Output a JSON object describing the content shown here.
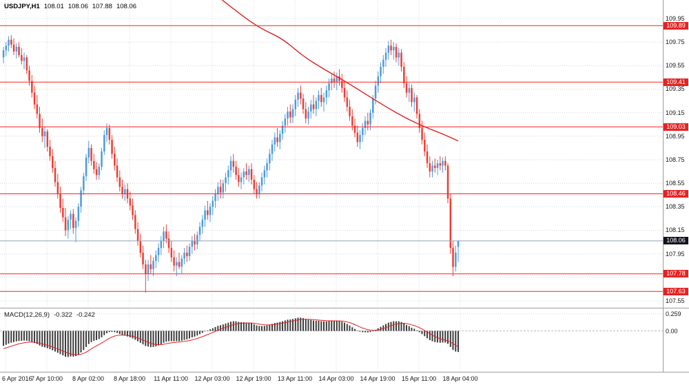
{
  "header": {
    "symbol": "USDJPY,H1",
    "open": "108.01",
    "high": "108.06",
    "low": "107.88",
    "close": "108.06"
  },
  "indicator_label": {
    "name": "MACD(12,26,9)",
    "macd_value": "-0.322",
    "signal_value": "-0.242"
  },
  "colors": {
    "bull": "#4a9bdf",
    "bear": "#ef3b33",
    "level_line": "#ff1f1f",
    "badge_bg": "#e32424",
    "ma_line": "#e01f1f",
    "signal_line": "#e01f1f",
    "histogram": "#3c3c3c",
    "current_line": "#8fa0b3",
    "current_badge_bg": "#10131d",
    "grid": "#d4d4d4",
    "separator": "#9b9b9b",
    "axis_text": "#141414",
    "badge_text": "#ffffff"
  },
  "chart_data": {
    "type": "candlestick",
    "title": "USDJPY H1 candlestick chart with MACD(12,26,9)",
    "symbol": "USDJPY",
    "timeframe": "H1",
    "grid": "dotted",
    "price_ticks": [
      "109.95",
      "109.75",
      "109.55",
      "109.35",
      "109.15",
      "108.95",
      "108.75",
      "108.55",
      "108.35",
      "108.15",
      "107.95",
      "107.75",
      "107.55"
    ],
    "price_range_shown": [
      107.49,
      110.11
    ],
    "time_labels": [
      "6 Apr 2016",
      "7 Apr 10:00",
      "8 Apr 02:00",
      "8 Apr 18:00",
      "11 Apr 11:00",
      "12 Apr 03:00",
      "12 Apr 19:00",
      "13 Apr 11:00",
      "14 Apr 03:00",
      "14 Apr 19:00",
      "15 Apr 11:00",
      "18 Apr 04:00"
    ],
    "horizontal_levels": [
      {
        "price": 109.89,
        "label": "109.89"
      },
      {
        "price": 109.41,
        "label": "109.41"
      },
      {
        "price": 109.03,
        "label": "109.03"
      },
      {
        "price": 108.46,
        "label": "108.46"
      },
      {
        "price": 107.78,
        "label": "107.78"
      },
      {
        "price": 107.63,
        "label": "107.63"
      }
    ],
    "current_price": {
      "price": 108.06,
      "label": "108.06"
    },
    "ma_trend_points": [
      [
        84,
        110.12
      ],
      [
        92,
        109.98
      ],
      [
        100,
        109.86
      ],
      [
        108,
        109.78
      ],
      [
        116,
        109.63
      ],
      [
        124,
        109.52
      ],
      [
        132,
        109.42
      ],
      [
        140,
        109.31
      ],
      [
        148,
        109.2
      ],
      [
        156,
        109.1
      ],
      [
        164,
        109.02
      ],
      [
        170,
        108.97
      ],
      [
        176,
        108.91
      ]
    ],
    "ohlc": [
      [
        109.62,
        109.71,
        109.57,
        109.68
      ],
      [
        109.68,
        109.75,
        109.63,
        109.72
      ],
      [
        109.72,
        109.8,
        109.67,
        109.77
      ],
      [
        109.77,
        109.81,
        109.7,
        109.73
      ],
      [
        109.73,
        109.78,
        109.64,
        109.67
      ],
      [
        109.67,
        109.74,
        109.61,
        109.71
      ],
      [
        109.71,
        109.75,
        109.62,
        109.64
      ],
      [
        109.64,
        109.7,
        109.56,
        109.59
      ],
      [
        109.59,
        109.66,
        109.52,
        109.62
      ],
      [
        109.62,
        109.64,
        109.48,
        109.51
      ],
      [
        109.51,
        109.55,
        109.38,
        109.42
      ],
      [
        109.42,
        109.47,
        109.28,
        109.32
      ],
      [
        109.32,
        109.38,
        109.18,
        109.22
      ],
      [
        109.22,
        109.3,
        109.1,
        109.14
      ],
      [
        109.14,
        109.2,
        108.98,
        109.02
      ],
      [
        109.02,
        109.1,
        108.9,
        108.95
      ],
      [
        108.95,
        109.03,
        108.85,
        108.99
      ],
      [
        108.99,
        109.01,
        108.82,
        108.86
      ],
      [
        108.86,
        108.92,
        108.74,
        108.78
      ],
      [
        108.78,
        108.84,
        108.64,
        108.68
      ],
      [
        108.68,
        108.74,
        108.52,
        108.56
      ],
      [
        108.56,
        108.63,
        108.42,
        108.46
      ],
      [
        108.46,
        108.52,
        108.3,
        108.34
      ],
      [
        108.34,
        108.42,
        108.22,
        108.26
      ],
      [
        108.26,
        108.34,
        108.1,
        108.15
      ],
      [
        108.15,
        108.27,
        108.08,
        108.24
      ],
      [
        108.24,
        108.32,
        108.16,
        108.29
      ],
      [
        108.29,
        108.33,
        108.12,
        108.17
      ],
      [
        108.17,
        108.26,
        108.05,
        108.23
      ],
      [
        108.23,
        108.38,
        108.18,
        108.35
      ],
      [
        108.35,
        108.52,
        108.3,
        108.49
      ],
      [
        108.49,
        108.64,
        108.45,
        108.61
      ],
      [
        108.61,
        108.8,
        108.57,
        108.77
      ],
      [
        108.77,
        108.91,
        108.72,
        108.85
      ],
      [
        108.85,
        108.88,
        108.7,
        108.74
      ],
      [
        108.74,
        108.8,
        108.63,
        108.67
      ],
      [
        108.67,
        108.73,
        108.58,
        108.62
      ],
      [
        108.62,
        108.72,
        108.58,
        108.69
      ],
      [
        108.69,
        108.85,
        108.66,
        108.82
      ],
      [
        108.82,
        109.0,
        108.79,
        108.96
      ],
      [
        108.96,
        109.06,
        108.9,
        109.02
      ],
      [
        109.02,
        109.05,
        108.88,
        108.92
      ],
      [
        108.92,
        108.96,
        108.76,
        108.8
      ],
      [
        108.8,
        108.86,
        108.66,
        108.7
      ],
      [
        108.7,
        108.76,
        108.56,
        108.6
      ],
      [
        108.6,
        108.66,
        108.48,
        108.52
      ],
      [
        108.52,
        108.58,
        108.42,
        108.46
      ],
      [
        108.46,
        108.54,
        108.4,
        108.5
      ],
      [
        108.5,
        108.55,
        108.38,
        108.42
      ],
      [
        108.42,
        108.48,
        108.32,
        108.36
      ],
      [
        108.36,
        108.42,
        108.24,
        108.28
      ],
      [
        108.28,
        108.32,
        108.12,
        108.16
      ],
      [
        108.16,
        108.22,
        108.02,
        108.06
      ],
      [
        108.06,
        108.12,
        107.92,
        107.96
      ],
      [
        107.96,
        108.02,
        107.82,
        107.86
      ],
      [
        107.86,
        107.9,
        107.62,
        107.78
      ],
      [
        107.78,
        107.9,
        107.72,
        107.86
      ],
      [
        107.86,
        107.94,
        107.78,
        107.82
      ],
      [
        107.82,
        107.92,
        107.76,
        107.89
      ],
      [
        107.89,
        107.98,
        107.83,
        107.94
      ],
      [
        107.94,
        108.04,
        107.88,
        108.0
      ],
      [
        108.0,
        108.1,
        107.94,
        108.06
      ],
      [
        108.06,
        108.18,
        108.0,
        108.14
      ],
      [
        108.14,
        108.2,
        108.04,
        108.08
      ],
      [
        108.08,
        108.14,
        107.96,
        108.0
      ],
      [
        108.0,
        108.06,
        107.88,
        107.92
      ],
      [
        107.92,
        107.98,
        107.8,
        107.85
      ],
      [
        107.85,
        107.92,
        107.76,
        107.88
      ],
      [
        107.88,
        107.96,
        107.82,
        107.84
      ],
      [
        107.84,
        107.94,
        107.78,
        107.91
      ],
      [
        107.91,
        108.0,
        107.86,
        107.96
      ],
      [
        107.96,
        108.02,
        107.88,
        107.93
      ],
      [
        107.93,
        108.04,
        107.89,
        108.01
      ],
      [
        108.01,
        108.1,
        107.95,
        108.06
      ],
      [
        108.06,
        108.12,
        107.98,
        108.03
      ],
      [
        108.03,
        108.14,
        107.99,
        108.11
      ],
      [
        108.11,
        108.22,
        108.06,
        108.18
      ],
      [
        108.18,
        108.28,
        108.12,
        108.24
      ],
      [
        108.24,
        108.36,
        108.18,
        108.32
      ],
      [
        108.32,
        108.4,
        108.24,
        108.28
      ],
      [
        108.28,
        108.38,
        108.22,
        108.35
      ],
      [
        108.35,
        108.44,
        108.28,
        108.4
      ],
      [
        108.4,
        108.5,
        108.34,
        108.46
      ],
      [
        108.46,
        108.56,
        108.4,
        108.52
      ],
      [
        108.52,
        108.58,
        108.42,
        108.47
      ],
      [
        108.47,
        108.58,
        108.42,
        108.55
      ],
      [
        108.55,
        108.64,
        108.48,
        108.6
      ],
      [
        108.6,
        108.7,
        108.54,
        108.66
      ],
      [
        108.66,
        108.78,
        108.6,
        108.74
      ],
      [
        108.74,
        108.8,
        108.64,
        108.69
      ],
      [
        108.69,
        108.74,
        108.58,
        108.62
      ],
      [
        108.62,
        108.68,
        108.52,
        108.56
      ],
      [
        108.56,
        108.64,
        108.5,
        108.6
      ],
      [
        108.6,
        108.68,
        108.54,
        108.65
      ],
      [
        108.65,
        108.72,
        108.58,
        108.62
      ],
      [
        108.62,
        108.7,
        108.56,
        108.67
      ],
      [
        108.67,
        108.72,
        108.54,
        108.58
      ],
      [
        108.58,
        108.62,
        108.46,
        108.5
      ],
      [
        108.5,
        108.56,
        108.42,
        108.46
      ],
      [
        108.46,
        108.56,
        108.42,
        108.53
      ],
      [
        108.53,
        108.64,
        108.48,
        108.6
      ],
      [
        108.6,
        108.7,
        108.54,
        108.66
      ],
      [
        108.66,
        108.76,
        108.6,
        108.72
      ],
      [
        108.72,
        108.84,
        108.66,
        108.8
      ],
      [
        108.8,
        108.92,
        108.74,
        108.88
      ],
      [
        108.88,
        108.98,
        108.82,
        108.94
      ],
      [
        108.94,
        109.02,
        108.86,
        108.9
      ],
      [
        108.9,
        109.0,
        108.84,
        108.97
      ],
      [
        108.97,
        109.08,
        108.92,
        109.04
      ],
      [
        109.04,
        109.14,
        108.98,
        109.1
      ],
      [
        109.1,
        109.2,
        109.04,
        109.16
      ],
      [
        109.16,
        109.22,
        109.06,
        109.11
      ],
      [
        109.11,
        109.22,
        109.06,
        109.18
      ],
      [
        109.18,
        109.3,
        109.12,
        109.26
      ],
      [
        109.26,
        109.36,
        109.2,
        109.32
      ],
      [
        109.32,
        109.38,
        109.22,
        109.27
      ],
      [
        109.27,
        109.31,
        109.14,
        109.18
      ],
      [
        109.18,
        109.24,
        109.06,
        109.1
      ],
      [
        109.1,
        109.2,
        109.05,
        109.16
      ],
      [
        109.16,
        109.26,
        109.1,
        109.22
      ],
      [
        109.22,
        109.3,
        109.14,
        109.18
      ],
      [
        109.18,
        109.28,
        109.12,
        109.25
      ],
      [
        109.25,
        109.34,
        109.18,
        109.3
      ],
      [
        109.3,
        109.36,
        109.2,
        109.24
      ],
      [
        109.24,
        109.32,
        109.16,
        109.28
      ],
      [
        109.28,
        109.38,
        109.22,
        109.34
      ],
      [
        109.34,
        109.44,
        109.28,
        109.4
      ],
      [
        109.4,
        109.48,
        109.34,
        109.44
      ],
      [
        109.44,
        109.5,
        109.36,
        109.41
      ],
      [
        109.41,
        109.49,
        109.34,
        109.46
      ],
      [
        109.46,
        109.52,
        109.38,
        109.42
      ],
      [
        109.42,
        109.48,
        109.32,
        109.36
      ],
      [
        109.36,
        109.42,
        109.24,
        109.28
      ],
      [
        109.28,
        109.34,
        109.16,
        109.2
      ],
      [
        109.2,
        109.26,
        109.08,
        109.12
      ],
      [
        109.12,
        109.18,
        109.0,
        109.04
      ],
      [
        109.04,
        109.1,
        108.94,
        108.98
      ],
      [
        108.98,
        109.04,
        108.86,
        108.9
      ],
      [
        108.9,
        109.0,
        108.84,
        108.96
      ],
      [
        108.96,
        109.06,
        108.9,
        109.02
      ],
      [
        109.02,
        109.12,
        108.96,
        109.08
      ],
      [
        109.08,
        109.15,
        109.0,
        109.05
      ],
      [
        109.05,
        109.18,
        109.0,
        109.15
      ],
      [
        109.15,
        109.3,
        109.1,
        109.27
      ],
      [
        109.27,
        109.42,
        109.22,
        109.38
      ],
      [
        109.38,
        109.5,
        109.32,
        109.46
      ],
      [
        109.46,
        109.58,
        109.4,
        109.54
      ],
      [
        109.54,
        109.64,
        109.48,
        109.6
      ],
      [
        109.6,
        109.7,
        109.54,
        109.66
      ],
      [
        109.66,
        109.76,
        109.6,
        109.72
      ],
      [
        109.72,
        109.77,
        109.64,
        109.68
      ],
      [
        109.68,
        109.75,
        109.6,
        109.71
      ],
      [
        109.71,
        109.74,
        109.58,
        109.62
      ],
      [
        109.62,
        109.7,
        109.55,
        109.66
      ],
      [
        109.66,
        109.69,
        109.5,
        109.54
      ],
      [
        109.54,
        109.58,
        109.36,
        109.4
      ],
      [
        109.4,
        109.46,
        109.28,
        109.32
      ],
      [
        109.32,
        109.4,
        109.24,
        109.36
      ],
      [
        109.36,
        109.39,
        109.2,
        109.24
      ],
      [
        109.24,
        109.32,
        109.16,
        109.28
      ],
      [
        109.28,
        109.3,
        109.1,
        109.14
      ],
      [
        109.14,
        109.18,
        108.98,
        109.02
      ],
      [
        109.02,
        109.08,
        108.88,
        108.92
      ],
      [
        108.92,
        108.98,
        108.78,
        108.82
      ],
      [
        108.82,
        108.88,
        108.68,
        108.72
      ],
      [
        108.72,
        108.78,
        108.6,
        108.65
      ],
      [
        108.65,
        108.74,
        108.6,
        108.7
      ],
      [
        108.7,
        108.76,
        108.64,
        108.68
      ],
      [
        108.68,
        108.75,
        108.62,
        108.72
      ],
      [
        108.72,
        108.78,
        108.66,
        108.7
      ],
      [
        108.7,
        108.77,
        108.64,
        108.74
      ],
      [
        108.74,
        108.78,
        108.66,
        108.7
      ],
      [
        108.7,
        108.72,
        108.38,
        108.42
      ],
      [
        108.42,
        108.46,
        107.95,
        108.0
      ],
      [
        108.0,
        108.06,
        107.76,
        107.84
      ],
      [
        107.84,
        108.02,
        107.8,
        107.96
      ],
      [
        108.01,
        108.06,
        107.88,
        108.06
      ]
    ],
    "macd": {
      "params": [
        12,
        26,
        9
      ],
      "current": -0.322,
      "signal_current": -0.242,
      "range_shown": [
        -0.62,
        0.32
      ],
      "axis_ticks": [
        {
          "label": "0.259",
          "value": 0.259
        },
        {
          "label": "0.00",
          "value": 0
        }
      ]
    }
  }
}
